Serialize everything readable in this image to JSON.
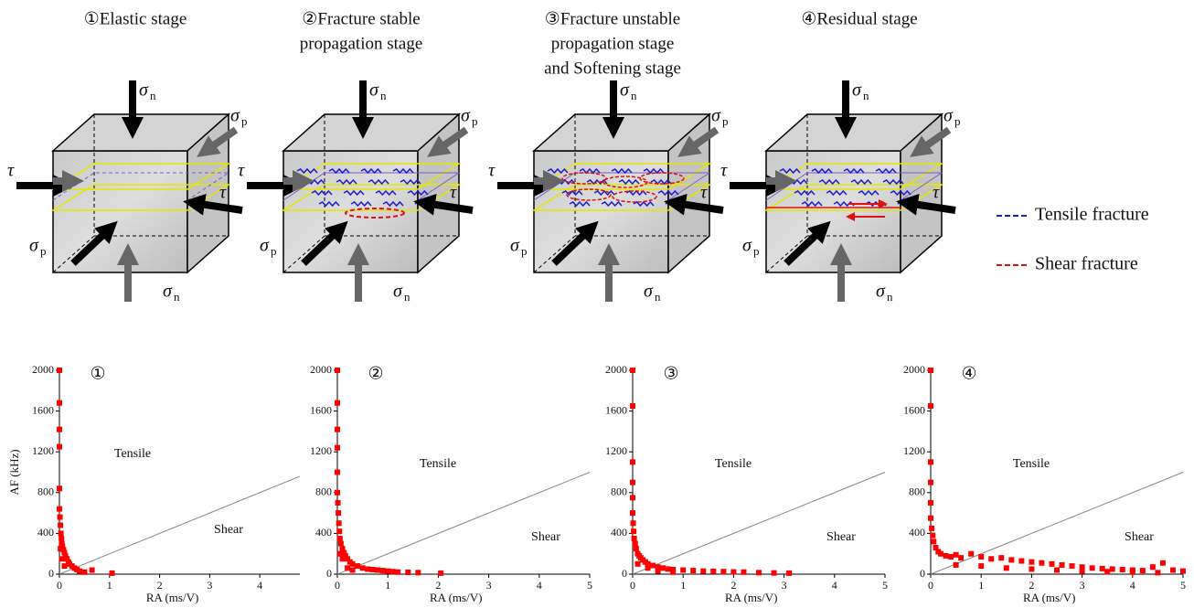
{
  "diagrams": {
    "stages": [
      {
        "title": [
          "①Elastic stage"
        ]
      },
      {
        "title": [
          "②Fracture stable",
          "propagation stage"
        ]
      },
      {
        "title": [
          "③Fracture unstable",
          "propagation stage",
          "and Softening stage"
        ]
      },
      {
        "title": [
          "④Residual stage"
        ]
      }
    ],
    "symbols": {
      "sigma": "σ",
      "tau": "τ",
      "n": "n",
      "p": "p"
    },
    "legend": [
      {
        "name": "Tensile fracture",
        "color": "#1a1adb"
      },
      {
        "name": "Shear fracture",
        "color": "#e01010"
      }
    ]
  },
  "chart_data": [
    {
      "type": "scatter",
      "panel": "①",
      "xlabel": "RA (ms/V)",
      "ylabel": "AF (kHz)",
      "region_labels": [
        "Tensile",
        "Shear"
      ],
      "xlim": [
        0,
        4.8
      ],
      "ylim": [
        0,
        2000
      ],
      "xticks": [
        0,
        1,
        2,
        3,
        4
      ],
      "yticks": [
        0,
        400,
        800,
        1200,
        1600,
        2000
      ],
      "color": "#ff0000",
      "x": [
        0,
        0,
        0,
        0,
        0,
        0,
        0.01,
        0.02,
        0.03,
        0.04,
        0.05,
        0.06,
        0.08,
        0.1,
        0.12,
        0.15,
        0.18,
        0.2,
        0.25,
        0.3,
        0.35,
        0.4,
        0.5,
        0.65,
        1.05,
        0.02,
        0.05,
        0.1
      ],
      "y": [
        2000,
        1680,
        1420,
        1250,
        840,
        640,
        560,
        480,
        400,
        350,
        300,
        270,
        240,
        210,
        180,
        150,
        120,
        100,
        80,
        60,
        45,
        30,
        20,
        40,
        10,
        250,
        150,
        80
      ],
      "line": {
        "x": [
          0,
          4.8
        ],
        "y": [
          0,
          960
        ],
        "color": "#888888"
      }
    },
    {
      "type": "scatter",
      "panel": "②",
      "xlabel": "RA (ms/V)",
      "region_labels": [
        "Tensile",
        "Shear"
      ],
      "xlim": [
        0,
        5
      ],
      "ylim": [
        0,
        2000
      ],
      "xticks": [
        0,
        1,
        2,
        3,
        4,
        5
      ],
      "yticks": [
        0,
        400,
        800,
        1200,
        1600,
        2000
      ],
      "color": "#ff0000",
      "x": [
        0,
        0,
        0,
        0,
        0,
        0,
        0.01,
        0.02,
        0.03,
        0.04,
        0.05,
        0.07,
        0.1,
        0.13,
        0.16,
        0.2,
        0.25,
        0.3,
        0.4,
        0.5,
        0.6,
        0.7,
        0.8,
        0.9,
        1.0,
        1.1,
        1.2,
        1.4,
        1.6,
        2.05,
        0.05,
        0.1,
        0.2,
        0.3
      ],
      "y": [
        2000,
        1680,
        1420,
        1240,
        1000,
        800,
        700,
        600,
        500,
        420,
        350,
        300,
        250,
        210,
        180,
        150,
        120,
        100,
        80,
        60,
        50,
        45,
        40,
        35,
        30,
        25,
        20,
        18,
        15,
        10,
        200,
        150,
        60,
        40
      ],
      "line": {
        "x": [
          0,
          5
        ],
        "y": [
          0,
          1000
        ],
        "color": "#888888"
      }
    },
    {
      "type": "scatter",
      "panel": "③",
      "xlabel": "RA (ms/V)",
      "region_labels": [
        "Tensile",
        "Shear"
      ],
      "xlim": [
        0,
        5
      ],
      "ylim": [
        0,
        2000
      ],
      "xticks": [
        0,
        1,
        2,
        3,
        4,
        5
      ],
      "yticks": [
        0,
        400,
        800,
        1200,
        1600,
        2000
      ],
      "color": "#ff0000",
      "x": [
        0,
        0,
        0,
        0,
        0,
        0,
        0.01,
        0.02,
        0.03,
        0.05,
        0.07,
        0.1,
        0.13,
        0.16,
        0.2,
        0.25,
        0.3,
        0.4,
        0.5,
        0.6,
        0.7,
        0.8,
        1.0,
        1.2,
        1.4,
        1.6,
        1.8,
        2.0,
        2.2,
        2.5,
        2.8,
        3.1,
        0.1,
        0.3,
        0.5,
        0.8
      ],
      "y": [
        2000,
        1650,
        1100,
        900,
        750,
        600,
        500,
        420,
        350,
        300,
        250,
        200,
        180,
        160,
        140,
        120,
        100,
        85,
        70,
        60,
        50,
        45,
        40,
        35,
        30,
        28,
        25,
        22,
        20,
        15,
        12,
        10,
        100,
        60,
        30,
        20
      ],
      "line": {
        "x": [
          0,
          5
        ],
        "y": [
          0,
          1000
        ],
        "color": "#888888"
      }
    },
    {
      "type": "scatter",
      "panel": "④",
      "xlabel": "RA (ms/V)",
      "region_labels": [
        "Tensile",
        "Shear"
      ],
      "xlim": [
        0,
        5
      ],
      "ylim": [
        0,
        2000
      ],
      "xticks": [
        0,
        1,
        2,
        3,
        4,
        5
      ],
      "yticks": [
        0,
        400,
        800,
        1200,
        1600,
        2000
      ],
      "color": "#ff0000",
      "x": [
        0,
        0,
        0,
        0,
        0,
        0,
        0.02,
        0.04,
        0.06,
        0.1,
        0.15,
        0.2,
        0.3,
        0.4,
        0.5,
        0.6,
        0.8,
        1.0,
        1.2,
        1.4,
        1.6,
        1.8,
        2.0,
        2.2,
        2.4,
        2.6,
        2.8,
        3.0,
        3.2,
        3.4,
        3.6,
        3.8,
        4.0,
        4.2,
        4.4,
        4.6,
        4.8,
        5.0,
        0.5,
        1.0,
        1.5,
        2.0,
        2.5,
        3.0,
        3.5,
        4.0,
        4.5
      ],
      "y": [
        2000,
        1650,
        1100,
        900,
        700,
        550,
        450,
        380,
        320,
        260,
        220,
        200,
        180,
        170,
        190,
        160,
        200,
        170,
        150,
        160,
        140,
        130,
        120,
        110,
        100,
        90,
        80,
        70,
        60,
        55,
        50,
        45,
        40,
        35,
        70,
        110,
        40,
        30,
        90,
        80,
        60,
        50,
        40,
        30,
        25,
        20,
        15
      ],
      "line": {
        "x": [
          0,
          5
        ],
        "y": [
          0,
          1000
        ],
        "color": "#888888"
      }
    }
  ]
}
